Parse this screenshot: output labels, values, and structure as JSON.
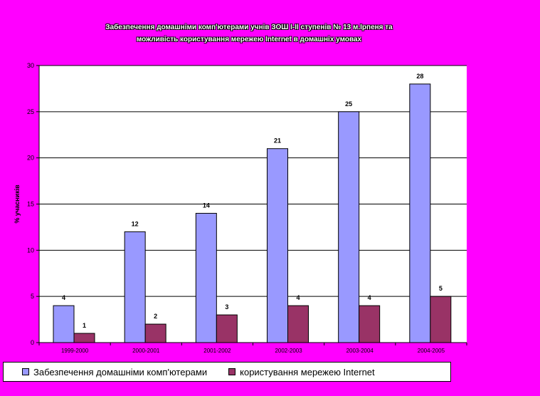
{
  "chart_data": {
    "type": "bar",
    "title_lines": [
      "Забезпечення домашніми комп'ютерами учнів ЗОШ І-ІІ ступенів № 13 м.Ірпеня та",
      "можливість користування мережею Internet в домашніх умовах"
    ],
    "ylabel": "% учасників",
    "ylim": [
      0,
      30
    ],
    "yticks": [
      0,
      5,
      10,
      15,
      20,
      25,
      30
    ],
    "grid": true,
    "categories": [
      "1999-2000",
      "2000-2001",
      "2001-2002",
      "2002-2003",
      "2003-2004",
      "2004-2005"
    ],
    "series": [
      {
        "name": "Забезпечення домашніми комп'ютерами",
        "values": [
          4,
          12,
          14,
          21,
          25,
          28
        ],
        "color": "#9999FF"
      },
      {
        "name": "користування мережею Internet",
        "values": [
          1,
          2,
          3,
          4,
          4,
          5
        ],
        "color": "#993366"
      }
    ],
    "legend_position": "bottom"
  }
}
